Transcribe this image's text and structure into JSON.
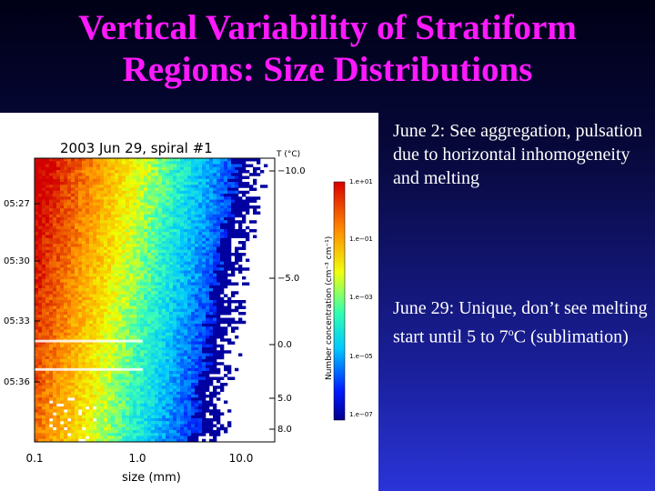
{
  "slide": {
    "title_line1": "Vertical Variability of Stratiform",
    "title_line2": "Regions: Size Distributions",
    "note1": "June 2: See aggregation, pulsation due to horizontal inhomogeneity and melting",
    "note2_main": "June 29: Unique, don’t see melting start until 5 to 7",
    "note2_deg": "o",
    "note2_end": "C (sublimation)"
  },
  "chart_data": {
    "type": "heatmap",
    "title": "2003 Jun 29, spiral #1",
    "xlabel": "size (mm)",
    "x_scale": "log",
    "x_ticks": [
      "0.1",
      "1.0",
      "10.0"
    ],
    "time_ticks": [
      "05:27",
      "05:30",
      "05:33",
      "05:36"
    ],
    "temp_label": "T (°C)",
    "temp_ticks": [
      "−10.0",
      "−5.0",
      "0.0",
      "5.0",
      "8.0"
    ],
    "colorbar_label": "Number concentration (cm⁻³ cm⁻¹)",
    "colorbar_ticks": [
      "1.e+01",
      "1.e−01",
      "1.e−03",
      "1.e−05",
      "1.e−07"
    ],
    "colorbar_range": [
      1e-07,
      10
    ],
    "colors": {
      "high": "#d80000",
      "mid_high": "#ff9a00",
      "mid": "#ffff00",
      "mid_low": "#00ffc0",
      "low": "#0000c0"
    }
  }
}
